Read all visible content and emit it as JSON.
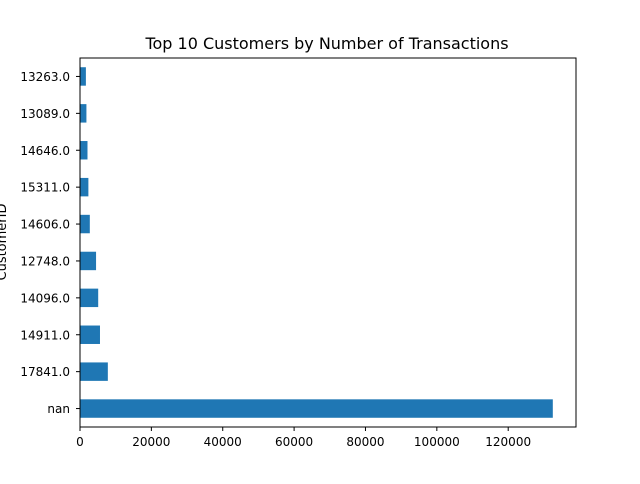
{
  "chart_data": {
    "type": "bar",
    "orientation": "horizontal",
    "title": "Top 10 Customers by Number of Transactions",
    "xlabel": "",
    "ylabel": "CustomerID",
    "categories": [
      "nan",
      "17841.0",
      "14911.0",
      "14096.0",
      "12748.0",
      "14606.0",
      "15311.0",
      "14646.0",
      "13089.0",
      "13263.0"
    ],
    "values": [
      132500,
      7800,
      5600,
      5100,
      4500,
      2750,
      2350,
      2100,
      1800,
      1650
    ],
    "xlim": [
      0,
      139000
    ],
    "x_ticks": [
      0,
      20000,
      40000,
      60000,
      80000,
      100000,
      120000
    ],
    "x_tick_labels": [
      "0",
      "20000",
      "40000",
      "60000",
      "80000",
      "100000",
      "120000"
    ],
    "grid": false,
    "bar_color": "#1f77b4"
  }
}
